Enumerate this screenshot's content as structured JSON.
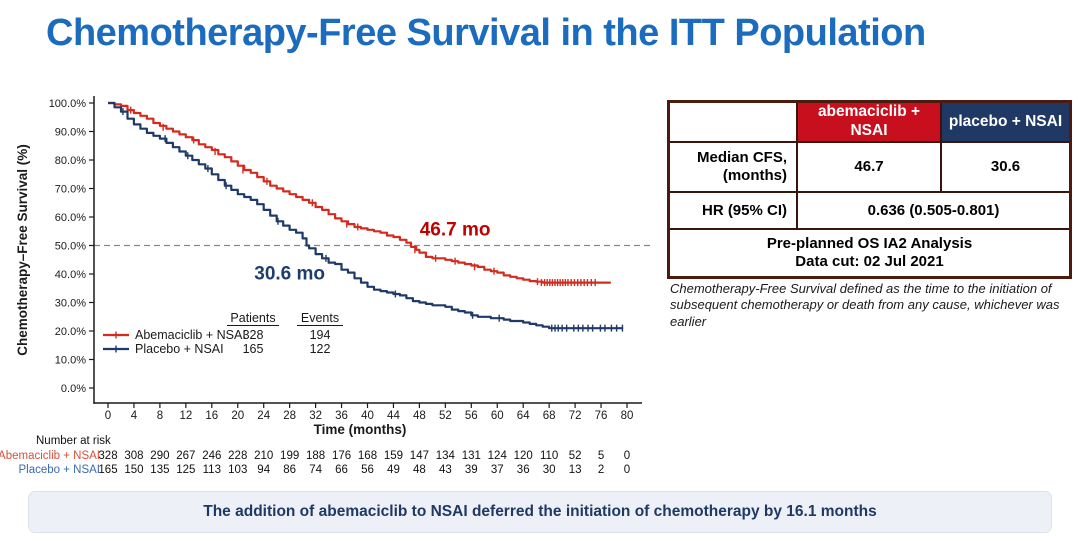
{
  "title": "Chemotherapy-Free Survival in the ITT Population",
  "colors": {
    "title_blue": "#1B6CBF",
    "abemaciclib_red": "#D52B1E",
    "placebo_navy": "#1F3A68",
    "table_header_red": "#C80F1E",
    "table_header_navy": "#1F3864",
    "table_border": "#4D1A10",
    "annotation_red": "#C00000",
    "annotation_navy": "#1F3E6E",
    "banner_bg": "#EDF1F7",
    "banner_text": "#1F3864"
  },
  "chart_data": {
    "type": "line",
    "subtype": "kaplan-meier-step",
    "title": "",
    "xlabel": "Time (months)",
    "ylabel": "Chemotherapy–Free Survival (%)",
    "xlim": [
      0,
      80
    ],
    "ylim": [
      0,
      100
    ],
    "x_ticks": [
      0,
      4,
      8,
      12,
      16,
      20,
      24,
      28,
      32,
      36,
      40,
      44,
      48,
      52,
      56,
      60,
      64,
      68,
      72,
      76,
      80
    ],
    "y_tick_labels": [
      "100.0%",
      "90.0%",
      "80.0%",
      "70.0%",
      "60.0%",
      "50.0%",
      "40.0%",
      "30.0%",
      "20.0%",
      "10.0%",
      "0.0%"
    ],
    "grid": false,
    "reference_line_pct": 50,
    "series": [
      {
        "name": "Abemaciclib + NSAI",
        "color": "#D52B1E",
        "median_months": 46.7,
        "points": [
          [
            0,
            100
          ],
          [
            1,
            99.5
          ],
          [
            2,
            99
          ],
          [
            3,
            97.5
          ],
          [
            4,
            96.5
          ],
          [
            5,
            95.5
          ],
          [
            6,
            94.5
          ],
          [
            7,
            93
          ],
          [
            8,
            92
          ],
          [
            9,
            91
          ],
          [
            10,
            90
          ],
          [
            11,
            89
          ],
          [
            12,
            88
          ],
          [
            13,
            87
          ],
          [
            14,
            85.5
          ],
          [
            15,
            84.5
          ],
          [
            16,
            83.5
          ],
          [
            17,
            82
          ],
          [
            18,
            81
          ],
          [
            19,
            79.5
          ],
          [
            20,
            78
          ],
          [
            21,
            76.5
          ],
          [
            22,
            75.5
          ],
          [
            23,
            74
          ],
          [
            24,
            72.5
          ],
          [
            25,
            71
          ],
          [
            26,
            70
          ],
          [
            27,
            69
          ],
          [
            28,
            68
          ],
          [
            29,
            67
          ],
          [
            30,
            66
          ],
          [
            31,
            65
          ],
          [
            32,
            63.5
          ],
          [
            33,
            62.5
          ],
          [
            34,
            61
          ],
          [
            35,
            59.5
          ],
          [
            36,
            58.5
          ],
          [
            37,
            57.5
          ],
          [
            38,
            56.5
          ],
          [
            39,
            56
          ],
          [
            40,
            55.5
          ],
          [
            41,
            55
          ],
          [
            42,
            54.5
          ],
          [
            43,
            53.5
          ],
          [
            44,
            53
          ],
          [
            45,
            52
          ],
          [
            46,
            51
          ],
          [
            46.7,
            49.5
          ],
          [
            47.5,
            48.5
          ],
          [
            48,
            47.5
          ],
          [
            49,
            46
          ],
          [
            50,
            45.5
          ],
          [
            52,
            45
          ],
          [
            53,
            44.5
          ],
          [
            54,
            44
          ],
          [
            55,
            43.5
          ],
          [
            56,
            43
          ],
          [
            57,
            42.5
          ],
          [
            58,
            41.5
          ],
          [
            59,
            41
          ],
          [
            60,
            40.5
          ],
          [
            61,
            39.5
          ],
          [
            62,
            39
          ],
          [
            63,
            38.5
          ],
          [
            64,
            38
          ],
          [
            65,
            37.5
          ],
          [
            66,
            37.3
          ],
          [
            67,
            37
          ],
          [
            77.5,
            37
          ]
        ],
        "censor_marks": [
          [
            3.5,
            97.5
          ],
          [
            8.5,
            91.5
          ],
          [
            13.2,
            87
          ],
          [
            16.5,
            83
          ],
          [
            20.8,
            76.5
          ],
          [
            24.5,
            72.5
          ],
          [
            31.5,
            65
          ],
          [
            36.8,
            57.5
          ],
          [
            38.5,
            56.5
          ],
          [
            47.3,
            48.5
          ],
          [
            50.5,
            45.5
          ],
          [
            53.5,
            44.5
          ],
          [
            56.5,
            42.5
          ],
          [
            59.5,
            41
          ],
          [
            66.2,
            37.3
          ],
          [
            66.8,
            37
          ],
          [
            67.3,
            37
          ],
          [
            67.7,
            37
          ],
          [
            68.1,
            37
          ],
          [
            68.5,
            37
          ],
          [
            68.9,
            37
          ],
          [
            69.3,
            37
          ],
          [
            69.7,
            37
          ],
          [
            70.1,
            37
          ],
          [
            70.5,
            37
          ],
          [
            70.9,
            37
          ],
          [
            71.4,
            37
          ],
          [
            71.9,
            37
          ],
          [
            72.4,
            37
          ],
          [
            72.9,
            37
          ],
          [
            73.4,
            37
          ],
          [
            73.9,
            37
          ],
          [
            74.5,
            37
          ],
          [
            75.1,
            37
          ]
        ]
      },
      {
        "name": "Placebo + NSAI",
        "color": "#1F3A68",
        "median_months": 30.6,
        "points": [
          [
            0,
            100
          ],
          [
            1,
            98.5
          ],
          [
            2,
            97
          ],
          [
            3,
            94.5
          ],
          [
            4,
            92.5
          ],
          [
            5,
            91
          ],
          [
            6,
            89.5
          ],
          [
            7,
            88.5
          ],
          [
            8,
            87.5
          ],
          [
            9,
            86
          ],
          [
            10,
            84.5
          ],
          [
            11,
            83
          ],
          [
            12,
            81.5
          ],
          [
            13,
            80
          ],
          [
            14,
            78.5
          ],
          [
            15,
            77
          ],
          [
            16,
            75
          ],
          [
            17,
            73
          ],
          [
            18,
            71
          ],
          [
            19,
            69.5
          ],
          [
            20,
            68
          ],
          [
            21,
            67
          ],
          [
            22,
            66
          ],
          [
            23,
            64.5
          ],
          [
            24,
            62.5
          ],
          [
            25,
            60.5
          ],
          [
            26,
            58.5
          ],
          [
            27,
            57
          ],
          [
            28,
            55.5
          ],
          [
            29,
            54.5
          ],
          [
            30,
            52.5
          ],
          [
            30.6,
            50
          ],
          [
            31,
            49
          ],
          [
            32,
            47
          ],
          [
            33,
            45.5
          ],
          [
            34,
            44
          ],
          [
            35,
            43.5
          ],
          [
            36,
            41.5
          ],
          [
            37,
            40.5
          ],
          [
            38,
            38.5
          ],
          [
            39,
            37
          ],
          [
            40,
            35.5
          ],
          [
            41,
            34.5
          ],
          [
            42,
            34
          ],
          [
            43,
            33.5
          ],
          [
            44,
            33
          ],
          [
            45,
            32.5
          ],
          [
            46,
            31.5
          ],
          [
            47,
            30.5
          ],
          [
            48,
            30
          ],
          [
            49,
            29.5
          ],
          [
            50,
            29
          ],
          [
            51,
            29
          ],
          [
            52,
            28.5
          ],
          [
            53,
            27.5
          ],
          [
            54,
            27
          ],
          [
            55,
            26.5
          ],
          [
            56,
            25.5
          ],
          [
            57,
            25
          ],
          [
            58,
            25
          ],
          [
            59,
            24.5
          ],
          [
            60,
            24.5
          ],
          [
            61,
            24
          ],
          [
            62,
            23.5
          ],
          [
            63,
            23.5
          ],
          [
            64,
            23
          ],
          [
            65,
            22.5
          ],
          [
            66,
            22
          ],
          [
            67,
            21.5
          ],
          [
            68,
            21
          ],
          [
            79.4,
            21
          ]
        ],
        "censor_marks": [
          [
            2.3,
            97
          ],
          [
            8.8,
            87.5
          ],
          [
            12.3,
            81.5
          ],
          [
            15.4,
            77
          ],
          [
            18.2,
            71
          ],
          [
            26.2,
            58.5
          ],
          [
            33.6,
            45.5
          ],
          [
            44.3,
            33
          ],
          [
            56.2,
            25.5
          ],
          [
            60.3,
            24.5
          ],
          [
            68.4,
            21
          ],
          [
            68.9,
            21
          ],
          [
            69.4,
            21
          ],
          [
            70,
            21
          ],
          [
            70.7,
            21
          ],
          [
            71.8,
            21
          ],
          [
            72.5,
            21
          ],
          [
            73.2,
            21
          ],
          [
            74,
            21
          ],
          [
            74.7,
            21
          ],
          [
            75.9,
            21
          ],
          [
            76.6,
            21
          ],
          [
            77.6,
            21
          ],
          [
            78.4,
            21
          ],
          [
            79.3,
            21
          ]
        ]
      }
    ],
    "annotations": [
      {
        "text": "46.7 mo",
        "month": 53.5,
        "pct": 53.5,
        "color": "#C00000"
      },
      {
        "text": "30.6 mo",
        "month": 28.0,
        "pct": 38.0,
        "color": "#1F3E6E"
      }
    ],
    "legend": {
      "patients_header": "Patients",
      "events_header": "Events",
      "rows": [
        {
          "label": "Abemaciclib + NSAI",
          "color": "#D52B1E",
          "patients": "328",
          "events": "194"
        },
        {
          "label": "Placebo + NSAI",
          "color": "#1F3A68",
          "patients": "165",
          "events": "122"
        }
      ]
    },
    "number_at_risk": {
      "header": "Number at risk",
      "rows": [
        {
          "label": "Abemaciclib + NSAI",
          "color": "#D9513A",
          "values": [
            328,
            308,
            290,
            267,
            246,
            228,
            210,
            199,
            188,
            176,
            168,
            159,
            147,
            134,
            131,
            124,
            120,
            110,
            52,
            5,
            0
          ]
        },
        {
          "label": "Placebo + NSAI",
          "color": "#3A6BB0",
          "values": [
            165,
            150,
            135,
            125,
            113,
            103,
            94,
            86,
            74,
            66,
            56,
            49,
            48,
            43,
            39,
            37,
            36,
            30,
            13,
            2,
            0
          ]
        }
      ]
    }
  },
  "summary_table": {
    "col_headers": [
      "abemaciclib + NSAI",
      "placebo + NSAI"
    ],
    "rows": [
      {
        "label": "Median CFS,\n(months)",
        "abemaciclib": "46.7",
        "placebo": "30.6"
      },
      {
        "label": "HR (95% CI)",
        "value": "0.636 (0.505-0.801)"
      }
    ],
    "footer_line1": "Pre-planned OS IA2 Analysis",
    "footer_line2": "Data cut: 02 Jul 2021"
  },
  "footnote": "Chemotherapy-Free Survival defined as the time to the initiation of subsequent chemotherapy or death from any cause, whichever was earlier",
  "banner": {
    "text": "The addition of abemaciclib to NSAI deferred the initiation of chemotherapy by 16.1 months"
  }
}
